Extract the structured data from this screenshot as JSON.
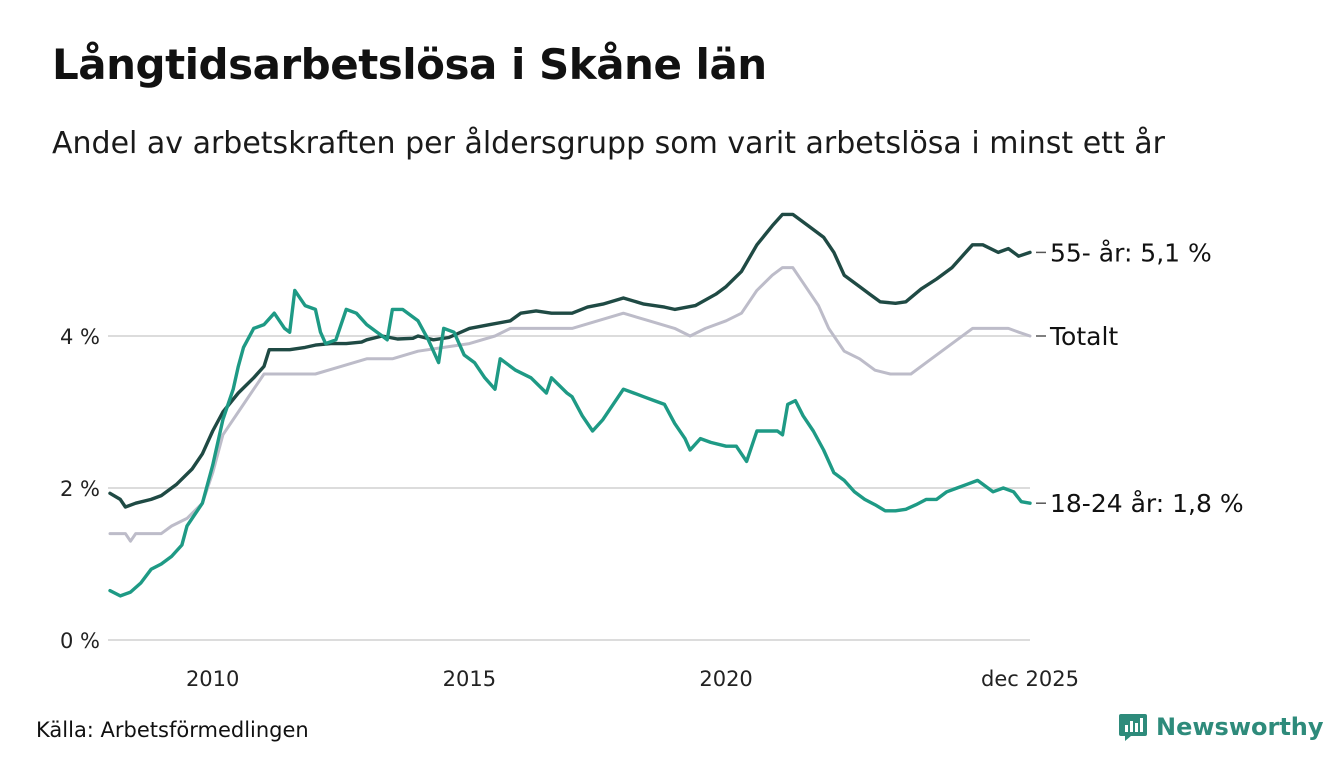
{
  "title": "Långtidsarbetslösa i Skåne län",
  "subtitle": "Andel av arbetskraften per åldersgrupp som varit arbetslösa i minst ett år",
  "source": "Källa: Arbetsförmedlingen",
  "brand": {
    "name": "Newsworthy",
    "icon": "bar-chart-logo-icon"
  },
  "colors": {
    "youth": "#1e9a85",
    "older": "#1f4a44",
    "total": "#bdbcc9",
    "grid": "#dcdcdc",
    "brand": "#2e8b7b"
  },
  "chart_data": {
    "type": "line",
    "title": "Långtidsarbetslösa i Skåne län",
    "xlabel": "",
    "ylabel": "",
    "x_range": [
      2008.0,
      2025.92
    ],
    "ylim": [
      0,
      6
    ],
    "y_ticks": [
      {
        "value": 0,
        "label": "0 %"
      },
      {
        "value": 2,
        "label": "2 %"
      },
      {
        "value": 4,
        "label": "4 %"
      }
    ],
    "x_ticks": [
      {
        "value": 2010,
        "label": "2010"
      },
      {
        "value": 2015,
        "label": "2015"
      },
      {
        "value": 2020,
        "label": "2020"
      },
      {
        "value": 2025.92,
        "label": "dec 2025"
      }
    ],
    "grid": true,
    "series": [
      {
        "name": "Totalt",
        "key": "total",
        "end_label": "Totalt",
        "points": [
          [
            2008.0,
            1.4
          ],
          [
            2008.3,
            1.4
          ],
          [
            2008.4,
            1.3
          ],
          [
            2008.5,
            1.4
          ],
          [
            2009.0,
            1.4
          ],
          [
            2009.2,
            1.5
          ],
          [
            2009.5,
            1.6
          ],
          [
            2009.8,
            1.8
          ],
          [
            2010.0,
            2.2
          ],
          [
            2010.2,
            2.7
          ],
          [
            2010.5,
            3.0
          ],
          [
            2010.8,
            3.3
          ],
          [
            2011.0,
            3.5
          ],
          [
            2011.5,
            3.5
          ],
          [
            2012.0,
            3.5
          ],
          [
            2012.5,
            3.6
          ],
          [
            2013.0,
            3.7
          ],
          [
            2013.5,
            3.7
          ],
          [
            2014.0,
            3.8
          ],
          [
            2014.5,
            3.85
          ],
          [
            2015.0,
            3.9
          ],
          [
            2015.5,
            4.0
          ],
          [
            2015.8,
            4.1
          ],
          [
            2016.0,
            4.1
          ],
          [
            2016.5,
            4.1
          ],
          [
            2017.0,
            4.1
          ],
          [
            2017.5,
            4.2
          ],
          [
            2018.0,
            4.3
          ],
          [
            2018.5,
            4.2
          ],
          [
            2019.0,
            4.1
          ],
          [
            2019.3,
            4.0
          ],
          [
            2019.6,
            4.1
          ],
          [
            2020.0,
            4.2
          ],
          [
            2020.3,
            4.3
          ],
          [
            2020.6,
            4.6
          ],
          [
            2020.9,
            4.8
          ],
          [
            2021.1,
            4.9
          ],
          [
            2021.3,
            4.9
          ],
          [
            2021.5,
            4.7
          ],
          [
            2021.8,
            4.4
          ],
          [
            2022.0,
            4.1
          ],
          [
            2022.3,
            3.8
          ],
          [
            2022.6,
            3.7
          ],
          [
            2022.9,
            3.55
          ],
          [
            2023.2,
            3.5
          ],
          [
            2023.6,
            3.5
          ],
          [
            2023.9,
            3.65
          ],
          [
            2024.2,
            3.8
          ],
          [
            2024.5,
            3.95
          ],
          [
            2024.8,
            4.1
          ],
          [
            2025.0,
            4.1
          ],
          [
            2025.5,
            4.1
          ],
          [
            2025.7,
            4.05
          ],
          [
            2025.92,
            4.0
          ]
        ]
      },
      {
        "name": "55- år",
        "key": "older",
        "end_label": "55- år: 5,1 %",
        "points": [
          [
            2008.0,
            1.93
          ],
          [
            2008.2,
            1.85
          ],
          [
            2008.3,
            1.75
          ],
          [
            2008.5,
            1.8
          ],
          [
            2008.8,
            1.85
          ],
          [
            2009.0,
            1.9
          ],
          [
            2009.3,
            2.05
          ],
          [
            2009.6,
            2.25
          ],
          [
            2009.8,
            2.45
          ],
          [
            2010.0,
            2.75
          ],
          [
            2010.2,
            3.0
          ],
          [
            2010.5,
            3.25
          ],
          [
            2010.8,
            3.45
          ],
          [
            2011.0,
            3.6
          ],
          [
            2011.1,
            3.82
          ],
          [
            2011.5,
            3.82
          ],
          [
            2011.8,
            3.85
          ],
          [
            2012.0,
            3.88
          ],
          [
            2012.3,
            3.9
          ],
          [
            2012.6,
            3.9
          ],
          [
            2012.9,
            3.92
          ],
          [
            2013.0,
            3.95
          ],
          [
            2013.3,
            4.0
          ],
          [
            2013.6,
            3.96
          ],
          [
            2013.9,
            3.97
          ],
          [
            2014.0,
            4.0
          ],
          [
            2014.3,
            3.95
          ],
          [
            2014.6,
            3.98
          ],
          [
            2015.0,
            4.1
          ],
          [
            2015.4,
            4.15
          ],
          [
            2015.8,
            4.2
          ],
          [
            2016.0,
            4.3
          ],
          [
            2016.3,
            4.33
          ],
          [
            2016.6,
            4.3
          ],
          [
            2017.0,
            4.3
          ],
          [
            2017.3,
            4.38
          ],
          [
            2017.6,
            4.42
          ],
          [
            2018.0,
            4.5
          ],
          [
            2018.4,
            4.42
          ],
          [
            2018.8,
            4.38
          ],
          [
            2019.0,
            4.35
          ],
          [
            2019.4,
            4.4
          ],
          [
            2019.8,
            4.55
          ],
          [
            2020.0,
            4.65
          ],
          [
            2020.3,
            4.85
          ],
          [
            2020.6,
            5.2
          ],
          [
            2020.9,
            5.45
          ],
          [
            2021.1,
            5.6
          ],
          [
            2021.3,
            5.6
          ],
          [
            2021.6,
            5.45
          ],
          [
            2021.9,
            5.3
          ],
          [
            2022.1,
            5.1
          ],
          [
            2022.3,
            4.8
          ],
          [
            2022.6,
            4.65
          ],
          [
            2022.8,
            4.55
          ],
          [
            2023.0,
            4.45
          ],
          [
            2023.3,
            4.43
          ],
          [
            2023.5,
            4.45
          ],
          [
            2023.8,
            4.62
          ],
          [
            2024.1,
            4.75
          ],
          [
            2024.4,
            4.9
          ],
          [
            2024.6,
            5.05
          ],
          [
            2024.8,
            5.2
          ],
          [
            2025.0,
            5.2
          ],
          [
            2025.3,
            5.1
          ],
          [
            2025.5,
            5.15
          ],
          [
            2025.7,
            5.05
          ],
          [
            2025.92,
            5.1
          ]
        ]
      },
      {
        "name": "18-24 år",
        "key": "youth",
        "end_label": "18-24 år: 1,8 %",
        "points": [
          [
            2008.0,
            0.65
          ],
          [
            2008.2,
            0.58
          ],
          [
            2008.4,
            0.63
          ],
          [
            2008.6,
            0.75
          ],
          [
            2008.8,
            0.93
          ],
          [
            2009.0,
            1.0
          ],
          [
            2009.2,
            1.1
          ],
          [
            2009.4,
            1.25
          ],
          [
            2009.5,
            1.5
          ],
          [
            2009.8,
            1.8
          ],
          [
            2010.0,
            2.3
          ],
          [
            2010.2,
            2.9
          ],
          [
            2010.4,
            3.3
          ],
          [
            2010.5,
            3.6
          ],
          [
            2010.6,
            3.85
          ],
          [
            2010.8,
            4.1
          ],
          [
            2011.0,
            4.15
          ],
          [
            2011.2,
            4.3
          ],
          [
            2011.4,
            4.1
          ],
          [
            2011.5,
            4.05
          ],
          [
            2011.6,
            4.6
          ],
          [
            2011.8,
            4.4
          ],
          [
            2012.0,
            4.35
          ],
          [
            2012.1,
            4.05
          ],
          [
            2012.2,
            3.9
          ],
          [
            2012.4,
            3.95
          ],
          [
            2012.6,
            4.35
          ],
          [
            2012.8,
            4.3
          ],
          [
            2013.0,
            4.15
          ],
          [
            2013.2,
            4.05
          ],
          [
            2013.4,
            3.95
          ],
          [
            2013.5,
            4.35
          ],
          [
            2013.7,
            4.35
          ],
          [
            2013.9,
            4.25
          ],
          [
            2014.0,
            4.2
          ],
          [
            2014.2,
            3.95
          ],
          [
            2014.4,
            3.65
          ],
          [
            2014.5,
            4.1
          ],
          [
            2014.7,
            4.05
          ],
          [
            2014.9,
            3.75
          ],
          [
            2015.1,
            3.65
          ],
          [
            2015.3,
            3.45
          ],
          [
            2015.5,
            3.3
          ],
          [
            2015.6,
            3.7
          ],
          [
            2015.9,
            3.55
          ],
          [
            2016.2,
            3.45
          ],
          [
            2016.5,
            3.25
          ],
          [
            2016.6,
            3.45
          ],
          [
            2016.9,
            3.25
          ],
          [
            2017.0,
            3.2
          ],
          [
            2017.2,
            2.95
          ],
          [
            2017.4,
            2.75
          ],
          [
            2017.6,
            2.9
          ],
          [
            2017.8,
            3.1
          ],
          [
            2018.0,
            3.3
          ],
          [
            2018.2,
            3.25
          ],
          [
            2018.4,
            3.2
          ],
          [
            2018.6,
            3.15
          ],
          [
            2018.8,
            3.1
          ],
          [
            2019.0,
            2.85
          ],
          [
            2019.2,
            2.65
          ],
          [
            2019.3,
            2.5
          ],
          [
            2019.5,
            2.65
          ],
          [
            2019.7,
            2.6
          ],
          [
            2020.0,
            2.55
          ],
          [
            2020.2,
            2.55
          ],
          [
            2020.4,
            2.35
          ],
          [
            2020.6,
            2.75
          ],
          [
            2020.8,
            2.75
          ],
          [
            2021.0,
            2.75
          ],
          [
            2021.1,
            2.7
          ],
          [
            2021.2,
            3.1
          ],
          [
            2021.35,
            3.15
          ],
          [
            2021.5,
            2.95
          ],
          [
            2021.7,
            2.75
          ],
          [
            2021.9,
            2.5
          ],
          [
            2022.1,
            2.2
          ],
          [
            2022.3,
            2.1
          ],
          [
            2022.5,
            1.95
          ],
          [
            2022.7,
            1.85
          ],
          [
            2022.9,
            1.78
          ],
          [
            2023.1,
            1.7
          ],
          [
            2023.3,
            1.7
          ],
          [
            2023.5,
            1.72
          ],
          [
            2023.7,
            1.78
          ],
          [
            2023.9,
            1.85
          ],
          [
            2024.1,
            1.85
          ],
          [
            2024.3,
            1.95
          ],
          [
            2024.5,
            2.0
          ],
          [
            2024.7,
            2.05
          ],
          [
            2024.9,
            2.1
          ],
          [
            2025.1,
            2.0
          ],
          [
            2025.2,
            1.95
          ],
          [
            2025.4,
            2.0
          ],
          [
            2025.6,
            1.95
          ],
          [
            2025.75,
            1.82
          ],
          [
            2025.92,
            1.8
          ]
        ]
      }
    ]
  }
}
